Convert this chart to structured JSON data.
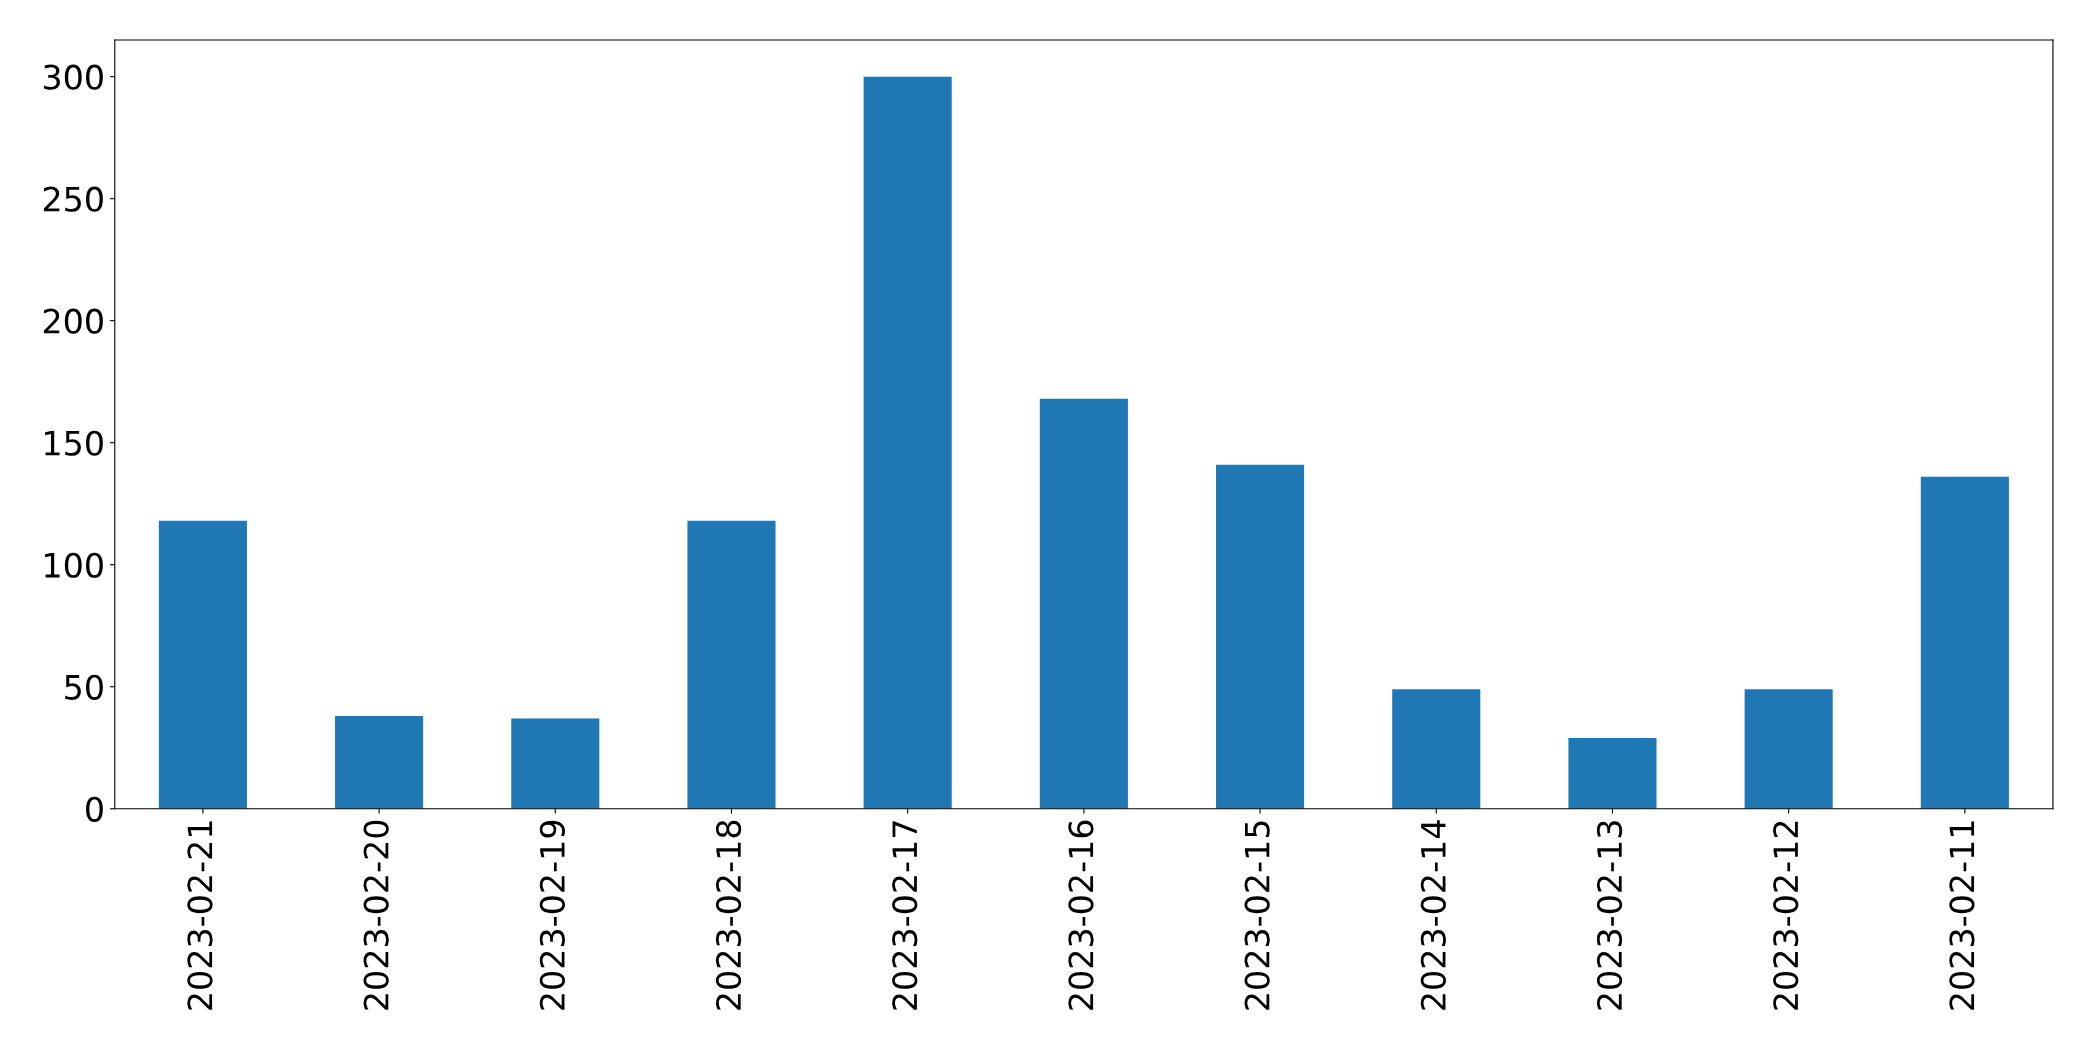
{
  "chart_data": {
    "type": "bar",
    "categories": [
      "2023-02-21",
      "2023-02-20",
      "2023-02-19",
      "2023-02-18",
      "2023-02-17",
      "2023-02-16",
      "2023-02-15",
      "2023-02-14",
      "2023-02-13",
      "2023-02-12",
      "2023-02-11"
    ],
    "values": [
      118,
      38,
      37,
      118,
      300,
      168,
      141,
      49,
      29,
      49,
      136
    ],
    "color": "#1f77b4",
    "ylim": [
      0,
      315
    ],
    "yticks": [
      0,
      50,
      100,
      150,
      200,
      250,
      300
    ],
    "grid": false,
    "legend": false
  }
}
